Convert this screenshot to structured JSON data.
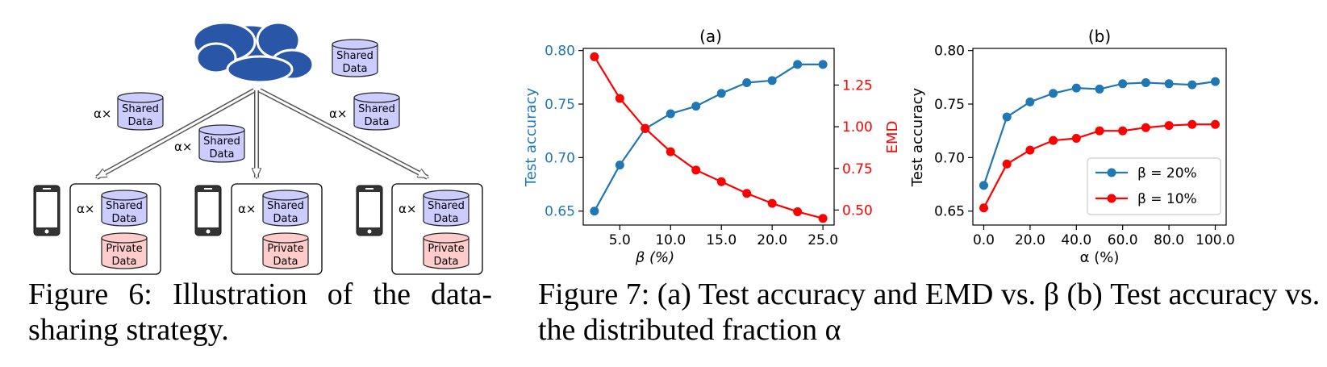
{
  "figure6": {
    "caption": "Figure 6:  Illustration of the data-sharing strategy.",
    "cylinder_shared": "Shared Data",
    "cylinder_private": "Private Data",
    "alpha_label": "α×",
    "cloud_icon": "cloud-icon",
    "device_icon": "smartphone-icon",
    "colors": {
      "cloud": "#2a56a8",
      "shared": "#ccccff",
      "private": "#ffcccc"
    }
  },
  "figure7": {
    "caption": "Figure 7: (a) Test accuracy and EMD vs. β (b) Test accuracy vs. the distributed fraction α"
  },
  "chart_data": [
    {
      "type": "line",
      "title": "(a)",
      "xlabel": "β (%)",
      "ylabel": "Test accuracy",
      "y2label": "EMD",
      "x": [
        2.5,
        5.0,
        7.5,
        10.0,
        12.5,
        15.0,
        17.5,
        20.0,
        22.5,
        25.0
      ],
      "xticks": [
        "5.0",
        "10.0",
        "15.0",
        "20.0",
        "25.0"
      ],
      "xlim": [
        1.4,
        26.1
      ],
      "ylim": [
        0.637,
        0.802
      ],
      "yticks": [
        "0.65",
        "0.70",
        "0.75",
        "0.80"
      ],
      "y2lim": [
        0.41,
        1.47
      ],
      "y2ticks": [
        "0.50",
        "0.75",
        "1.00",
        "1.25"
      ],
      "series": [
        {
          "axis": "left",
          "color": "#1f77b4",
          "values": [
            0.65,
            0.693,
            0.727,
            0.741,
            0.748,
            0.76,
            0.77,
            0.772,
            0.787,
            0.787
          ]
        },
        {
          "axis": "right",
          "color": "#ff0000",
          "values": [
            1.42,
            1.17,
            0.99,
            0.85,
            0.74,
            0.67,
            0.6,
            0.54,
            0.49,
            0.45
          ]
        }
      ],
      "grid": false
    },
    {
      "type": "line",
      "title": "(b)",
      "xlabel": "α (%)",
      "ylabel": "Test accuracy",
      "x": [
        0,
        10,
        20,
        30,
        40,
        50,
        60,
        70,
        80,
        90,
        100
      ],
      "xticks": [
        "0.0",
        "20.0",
        "40.0",
        "60.0",
        "80.0",
        "100.0"
      ],
      "xlim": [
        -4.7,
        104.7
      ],
      "ylim": [
        0.637,
        0.802
      ],
      "yticks": [
        "0.65",
        "0.70",
        "0.75",
        "0.80"
      ],
      "legend_position": "lower-right",
      "series": [
        {
          "name": "β = 20%",
          "color": "#1f77b4",
          "values": [
            0.674,
            0.738,
            0.752,
            0.76,
            0.765,
            0.764,
            0.769,
            0.77,
            0.769,
            0.768,
            0.771
          ]
        },
        {
          "name": "β = 10%",
          "color": "#ff0000",
          "values": [
            0.653,
            0.694,
            0.707,
            0.716,
            0.718,
            0.725,
            0.725,
            0.728,
            0.73,
            0.731,
            0.731
          ]
        }
      ],
      "grid": false
    }
  ]
}
